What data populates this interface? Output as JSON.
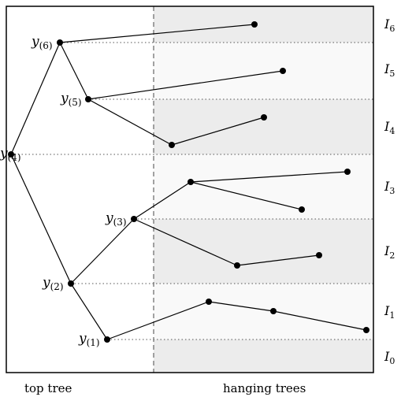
{
  "captions": {
    "left": "top tree",
    "right": "hanging trees"
  },
  "vertex_labels": [
    {
      "base": "y",
      "sub": "(6)"
    },
    {
      "base": "y",
      "sub": "(5)"
    },
    {
      "base": "y",
      "sub": "(4)"
    },
    {
      "base": "y",
      "sub": "(3)"
    },
    {
      "base": "y",
      "sub": "(2)"
    },
    {
      "base": "y",
      "sub": "(1)"
    }
  ],
  "interval_labels": [
    {
      "base": "I",
      "sub": "6"
    },
    {
      "base": "I",
      "sub": "5"
    },
    {
      "base": "I",
      "sub": "4"
    },
    {
      "base": "I",
      "sub": "3"
    },
    {
      "base": "I",
      "sub": "2"
    },
    {
      "base": "I",
      "sub": "1"
    },
    {
      "base": "I",
      "sub": "0"
    }
  ],
  "colors": {
    "band_light": "#f9f9f9",
    "band_dark": "#ececec",
    "stroke": "#000000",
    "dotted": "#555555",
    "dashed": "#666666"
  }
}
